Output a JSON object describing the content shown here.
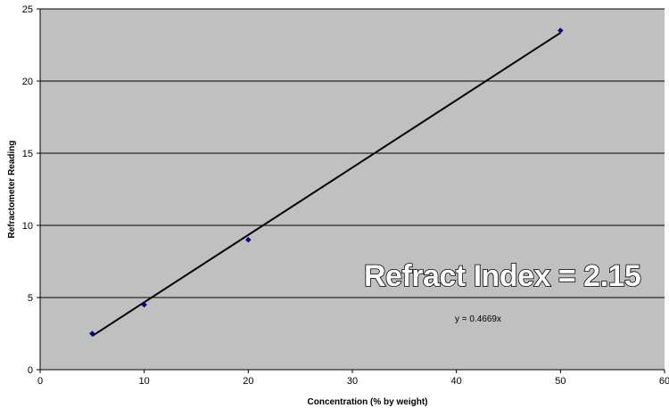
{
  "chart_data": {
    "type": "scatter",
    "title": "",
    "xlabel": "Concentration (% by weight)",
    "ylabel": "Refractometer Reading",
    "xlim": [
      0,
      60
    ],
    "ylim": [
      0,
      25
    ],
    "x_ticks": [
      "0",
      "10",
      "20",
      "30",
      "40",
      "50",
      "60"
    ],
    "y_ticks": [
      "0",
      "5",
      "10",
      "15",
      "20",
      "25"
    ],
    "grid": "horizontal",
    "series": [
      {
        "points": [
          {
            "x": 5,
            "y": 2.5
          },
          {
            "x": 10,
            "y": 4.5
          },
          {
            "x": 20,
            "y": 9
          },
          {
            "x": 50,
            "y": 23.5
          }
        ],
        "marker": "diamond",
        "color": "#000080"
      }
    ],
    "trendline": {
      "slope": 0.4669,
      "intercept": 0,
      "from_x": 5,
      "to_x": 50,
      "color": "#000000"
    },
    "annotations": {
      "equation": "y = 0.4669x",
      "headline": "Refract Index = 2.15"
    },
    "plot_background": "#c0c0c0"
  }
}
